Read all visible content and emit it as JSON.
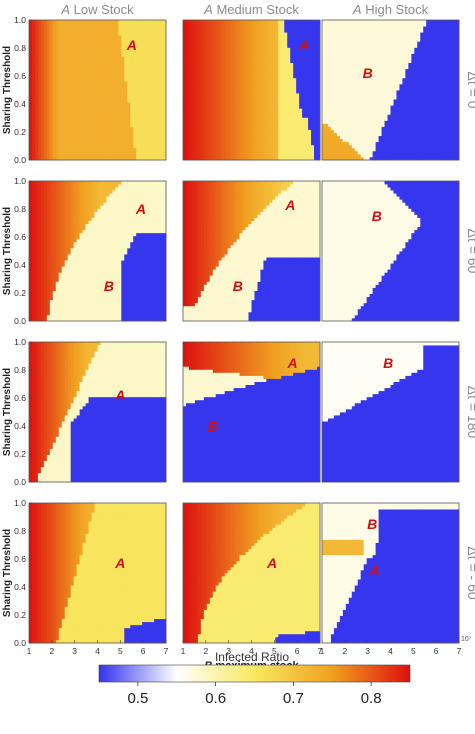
{
  "chart_data": {
    "type": "heatmap",
    "columns": [
      {
        "italic": "A",
        "rest": " Low Stock"
      },
      {
        "italic": "A",
        "rest": " Medium Stock"
      },
      {
        "italic": "A",
        "rest": " High Stock"
      }
    ],
    "rows": [
      "Δt = 0",
      "Δt = 60",
      "Δt = 180",
      "Δt = - 60"
    ],
    "xlabel": {
      "italic": "B",
      "rest": " maximum stock"
    },
    "ylabel": "Sharing Threshold",
    "x_ticks": [
      "1",
      "2",
      "3",
      "4",
      "5",
      "6",
      "7"
    ],
    "y_ticks": [
      "0.0",
      "0.2",
      "0.4",
      "0.6",
      "0.8",
      "1.0"
    ],
    "x_exponent": "10⁷",
    "xlim": [
      1,
      7
    ],
    "ylim": [
      0,
      1
    ],
    "colorbar": {
      "title": "Infected Ratio",
      "ticks": [
        "0.5",
        "0.6",
        "0.7",
        "0.8"
      ],
      "range": [
        0.45,
        0.85
      ],
      "colors": [
        "#3333ee",
        "#ffffff",
        "#f8e860",
        "#f0a020",
        "#dd1010"
      ]
    },
    "region_labels": [
      {
        "row": 0,
        "col": 0,
        "text": "A",
        "x": 5.5,
        "y": 0.82
      },
      {
        "row": 0,
        "col": 1,
        "text": "A",
        "x": 6.3,
        "y": 0.82
      },
      {
        "row": 0,
        "col": 2,
        "text": "B",
        "x": 3.0,
        "y": 0.62
      },
      {
        "row": 1,
        "col": 0,
        "text": "A",
        "x": 5.9,
        "y": 0.8
      },
      {
        "row": 1,
        "col": 0,
        "text": "B",
        "x": 4.5,
        "y": 0.25
      },
      {
        "row": 1,
        "col": 1,
        "text": "A",
        "x": 5.7,
        "y": 0.83
      },
      {
        "row": 1,
        "col": 1,
        "text": "B",
        "x": 3.4,
        "y": 0.25
      },
      {
        "row": 1,
        "col": 2,
        "text": "B",
        "x": 3.4,
        "y": 0.75
      },
      {
        "row": 2,
        "col": 0,
        "text": "A",
        "x": 5.0,
        "y": 0.62
      },
      {
        "row": 2,
        "col": 1,
        "text": "A",
        "x": 5.8,
        "y": 0.85
      },
      {
        "row": 2,
        "col": 1,
        "text": "B",
        "x": 2.3,
        "y": 0.4
      },
      {
        "row": 2,
        "col": 2,
        "text": "B",
        "x": 3.9,
        "y": 0.85
      },
      {
        "row": 3,
        "col": 0,
        "text": "A",
        "x": 5.0,
        "y": 0.57
      },
      {
        "row": 3,
        "col": 1,
        "text": "A",
        "x": 4.9,
        "y": 0.57
      },
      {
        "row": 3,
        "col": 2,
        "text": "B",
        "x": 3.2,
        "y": 0.85
      },
      {
        "row": 3,
        "col": 2,
        "text": "A",
        "x": 3.3,
        "y": 0.52
      }
    ]
  }
}
